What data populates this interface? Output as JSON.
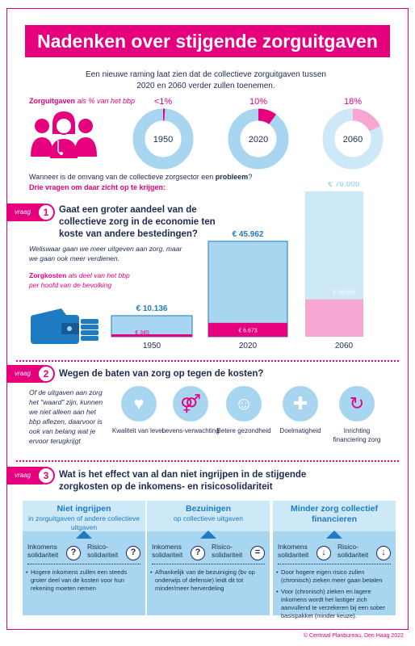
{
  "title": "Nadenken over stijgende zorguitgaven",
  "intro": "Een nieuwe raming laat zien dat de collectieve zorguitgaven tussen 2020 en 2060 verder zullen toenemen.",
  "share_label": {
    "bold": "Zorguitgaven",
    "rest": " als % van het bbp"
  },
  "donuts": [
    {
      "year": "1950",
      "pct_label": "<1%",
      "share": 0.01
    },
    {
      "year": "2020",
      "pct_label": "10%",
      "share": 0.1
    },
    {
      "year": "2060",
      "pct_label": "18%",
      "share": 0.18
    }
  ],
  "problem_q": {
    "text": "Wanneer is de omvang van de collectieve zorgsector een ",
    "bold": "probleem",
    "end": "?"
  },
  "three_q": "Drie vragen om daar zicht op te krijgen:",
  "q_tag": "vraag",
  "q1": {
    "num": "1",
    "text": "Gaat een groter aandeel van de collectieve zorg in de economie ten koste van andere bestedingen?",
    "note": "Weliswaar gaan we meer uitgeven aan zorg, maar we gaan ook meer verdienen.",
    "legend_bold": "Zorgkosten",
    "legend_rest": " als deel van het bbp per hoofd van de bevolking"
  },
  "chart_data": {
    "type": "bar",
    "categories": [
      "1950",
      "2020",
      "2060"
    ],
    "series": [
      {
        "name": "",
        "values": [
          10136,
          45962,
          70000
        ],
        "labels": [
          "€ 10.136",
          "€ 45.962",
          "€ 70.000"
        ]
      },
      {
        "name": "Zorgkosten",
        "values": [
          345,
          6673,
          18000
        ],
        "labels": [
          "€ 345",
          "€ 6.673",
          "€ 18.000"
        ]
      }
    ],
    "ylim": [
      0,
      70000
    ]
  },
  "q2": {
    "num": "2",
    "text": "Wegen de baten van zorg op tegen de kosten?",
    "note": "Of de uitgaven aan zorg het \"waard\" zijn, kunnen we niet alleen aan het bbp aflezen, daarvoor is ook van belang wat je ervoor terugkrijgt",
    "icons": [
      {
        "label": "Kwaliteit van leven",
        "icon": "heart-person-icon"
      },
      {
        "label": "Levens-verwachting",
        "icon": "elderly-couple-icon"
      },
      {
        "label": "Betere gezondheid",
        "icon": "healthy-people-icon"
      },
      {
        "label": "Doelmatigheid",
        "icon": "medical-cross-icon"
      },
      {
        "label": "Inrichting financiering zorg",
        "icon": "hand-cycle-icon"
      }
    ]
  },
  "q3": {
    "num": "3",
    "text": "Wat is het effect van al dan niet ingrijpen in de stijgende zorgkosten op de inkomens- en risicosolidariteit"
  },
  "panels": [
    {
      "title": "Niet ingrijpen",
      "sub": "in zorguitgaven of andere collectieve uitgaven",
      "inc": "Inkomens solidariteit",
      "risk": "Risico- solidariteit",
      "sym_inc": "?",
      "sym_risk": "?",
      "bullets": [
        {
          "text": "Hogere inkomens zullen een steeds groter deel van de kosten voor hun rekening moeten nemen"
        }
      ]
    },
    {
      "title": "Bezuinigen",
      "sub": "op collectieve uitgaven",
      "inc": "Inkomens solidariteit",
      "risk": "Risico- solidariteit",
      "sym_inc": "?",
      "sym_risk": "=",
      "bullets": [
        {
          "text": "Afhankelijk van de bezuiniging (bv op onderwijs of defensie) leidt dit tot minder/meer herverdeling"
        }
      ]
    },
    {
      "title": "Minder zorg collectief financieren",
      "sub": "",
      "inc": "Inkomens solidariteit",
      "risk": "Risico- solidariteit",
      "sym_inc": "↓",
      "sym_risk": "↓",
      "bullets": [
        {
          "text": "Door hogere eigen risico zullen (chronisch) zieken meer gaan betalen"
        },
        {
          "text": "Voor (chronisch) zieken en lagere inkomens wordt het lastiger zich aanvullend te verzekeren bij een sober basispakket (minder keuze)."
        }
      ]
    }
  ],
  "footer": "© Centraal Planbureau, Den Haag 2022",
  "colors": {
    "pink": "#e6007e",
    "light_blue": "#a8d6f0",
    "navy": "#1e2a52",
    "blue": "#1e7bc1",
    "light_pink": "#f6a6d0"
  }
}
